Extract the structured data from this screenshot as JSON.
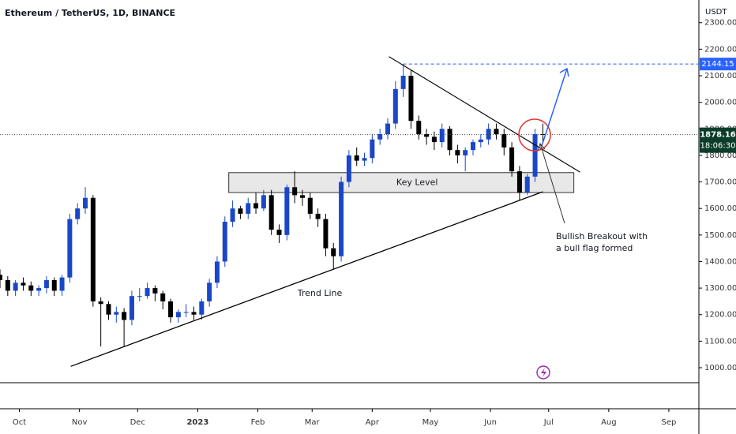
{
  "chart_data": {
    "type": "candlestick",
    "title": "Ethereum / TetherUS, 1D, BINANCE",
    "currency": "USDT",
    "countdown": "18:06:30",
    "up_color": "#1a47c8",
    "down_color": "#000000",
    "x": [
      0,
      4,
      8,
      12,
      16,
      20,
      24,
      28,
      32,
      36,
      40,
      44,
      48,
      52,
      56,
      60,
      64,
      68,
      72,
      76,
      80,
      84,
      88,
      92,
      96,
      100,
      104,
      108,
      112,
      116,
      120,
      124,
      128,
      132,
      136,
      140,
      144,
      148,
      152,
      156,
      160,
      164,
      168,
      172,
      176,
      180,
      184,
      188,
      192,
      196,
      200,
      204,
      208,
      212,
      216,
      220,
      224,
      228,
      232,
      236,
      240,
      244,
      248,
      252,
      256,
      260,
      264,
      268,
      272,
      276,
      280
    ],
    "open": [
      1350,
      1330,
      1290,
      1320,
      1310,
      1290,
      1300,
      1330,
      1290,
      1340,
      1560,
      1600,
      1640,
      1250,
      1240,
      1200,
      1210,
      1180,
      1270,
      1270,
      1300,
      1280,
      1250,
      1190,
      1210,
      1210,
      1200,
      1250,
      1320,
      1400,
      1550,
      1600,
      1580,
      1620,
      1600,
      1650,
      1520,
      1500,
      1680,
      1650,
      1640,
      1580,
      1560,
      1450,
      1420,
      1700,
      1800,
      1780,
      1790,
      1860,
      1880,
      1920,
      2050,
      2100,
      1930,
      1880,
      1870,
      1850,
      1900,
      1820,
      1800,
      1820,
      1850,
      1860,
      1900,
      1880,
      1830,
      1740,
      1660,
      1720,
      1880
    ],
    "high": [
      1370,
      1345,
      1330,
      1340,
      1325,
      1310,
      1345,
      1340,
      1350,
      1580,
      1620,
      1680,
      1650,
      1265,
      1250,
      1230,
      1225,
      1290,
      1300,
      1320,
      1310,
      1290,
      1260,
      1220,
      1240,
      1230,
      1260,
      1335,
      1420,
      1570,
      1630,
      1610,
      1640,
      1660,
      1670,
      1670,
      1540,
      1690,
      1740,
      1670,
      1660,
      1600,
      1580,
      1470,
      1720,
      1820,
      1830,
      1810,
      1880,
      1900,
      1940,
      2080,
      2144,
      2120,
      1950,
      1900,
      1890,
      1920,
      1910,
      1840,
      1830,
      1860,
      1880,
      1920,
      1920,
      1900,
      1850,
      1760,
      1730,
      1900,
      1920
    ],
    "low": [
      1300,
      1270,
      1270,
      1290,
      1270,
      1270,
      1280,
      1270,
      1270,
      1320,
      1540,
      1580,
      1230,
      1080,
      1180,
      1170,
      1080,
      1160,
      1250,
      1260,
      1250,
      1220,
      1170,
      1170,
      1190,
      1180,
      1180,
      1230,
      1300,
      1380,
      1530,
      1560,
      1560,
      1580,
      1590,
      1500,
      1470,
      1480,
      1620,
      1610,
      1560,
      1530,
      1420,
      1370,
      1400,
      1680,
      1760,
      1760,
      1770,
      1840,
      1860,
      1900,
      2020,
      1900,
      1860,
      1840,
      1820,
      1830,
      1800,
      1770,
      1740,
      1800,
      1830,
      1840,
      1860,
      1800,
      1720,
      1630,
      1650,
      1700,
      1850
    ],
    "close": [
      1330,
      1290,
      1320,
      1310,
      1290,
      1300,
      1330,
      1290,
      1340,
      1560,
      1600,
      1640,
      1250,
      1240,
      1200,
      1210,
      1180,
      1270,
      1270,
      1300,
      1280,
      1250,
      1190,
      1210,
      1210,
      1200,
      1250,
      1320,
      1400,
      1550,
      1600,
      1580,
      1620,
      1600,
      1650,
      1520,
      1500,
      1680,
      1650,
      1640,
      1580,
      1560,
      1450,
      1420,
      1700,
      1800,
      1780,
      1790,
      1860,
      1880,
      1920,
      2050,
      2100,
      1930,
      1880,
      1870,
      1850,
      1900,
      1820,
      1800,
      1820,
      1850,
      1860,
      1900,
      1880,
      1830,
      1740,
      1660,
      1720,
      1880,
      1878.16
    ],
    "xlim": [
      0,
      360.5
    ],
    "ylim": [
      943.5,
      2385.4
    ],
    "xticks": [
      {
        "value": 10,
        "label": "Oct"
      },
      {
        "value": 41,
        "label": "Nov"
      },
      {
        "value": 71,
        "label": "Dec"
      },
      {
        "value": 102,
        "label": "2023"
      },
      {
        "value": 133,
        "label": "Feb"
      },
      {
        "value": 161,
        "label": "Mar"
      },
      {
        "value": 192,
        "label": "Apr"
      },
      {
        "value": 222,
        "label": "May"
      },
      {
        "value": 253,
        "label": "Jun"
      },
      {
        "value": 283,
        "label": "Jul"
      },
      {
        "value": 314,
        "label": "Aug"
      },
      {
        "value": 345,
        "label": "Sep"
      }
    ],
    "yticks": [
      {
        "value": 1000,
        "label": "1000.00"
      },
      {
        "value": 1100,
        "label": "1100.00"
      },
      {
        "value": 1200,
        "label": "1200.00"
      },
      {
        "value": 1300,
        "label": "1300.00"
      },
      {
        "value": 1400,
        "label": "1400.00"
      },
      {
        "value": 1500,
        "label": "1500.00"
      },
      {
        "value": 1600,
        "label": "1600.00"
      },
      {
        "value": 1700,
        "label": "1700.00"
      },
      {
        "value": 1800,
        "label": "1800.00"
      },
      {
        "value": 1900,
        "label": "1900.00"
      },
      {
        "value": 2000,
        "label": "2000.00"
      },
      {
        "value": 2100,
        "label": "2100.00"
      },
      {
        "value": 2200,
        "label": "2200.00"
      },
      {
        "value": 2300,
        "label": "2300.00"
      }
    ],
    "annotations": {
      "key_level": {
        "label": "Key Level",
        "x": [
          118,
          296
        ],
        "y": [
          1660,
          1735
        ]
      },
      "trend_line": {
        "label": "Trend Line",
        "x": [
          36.5,
          280
        ],
        "y": [
          1005,
          1663
        ]
      },
      "down_line": {
        "x": [
          200.6,
          299.2
        ],
        "y": [
          2172,
          1737
        ]
      },
      "resistance": {
        "value": 2144.15,
        "x": 208
      },
      "breakout_note": {
        "lines": [
          "Bullish Breakout with",
          "a bull flag formed"
        ]
      }
    }
  }
}
